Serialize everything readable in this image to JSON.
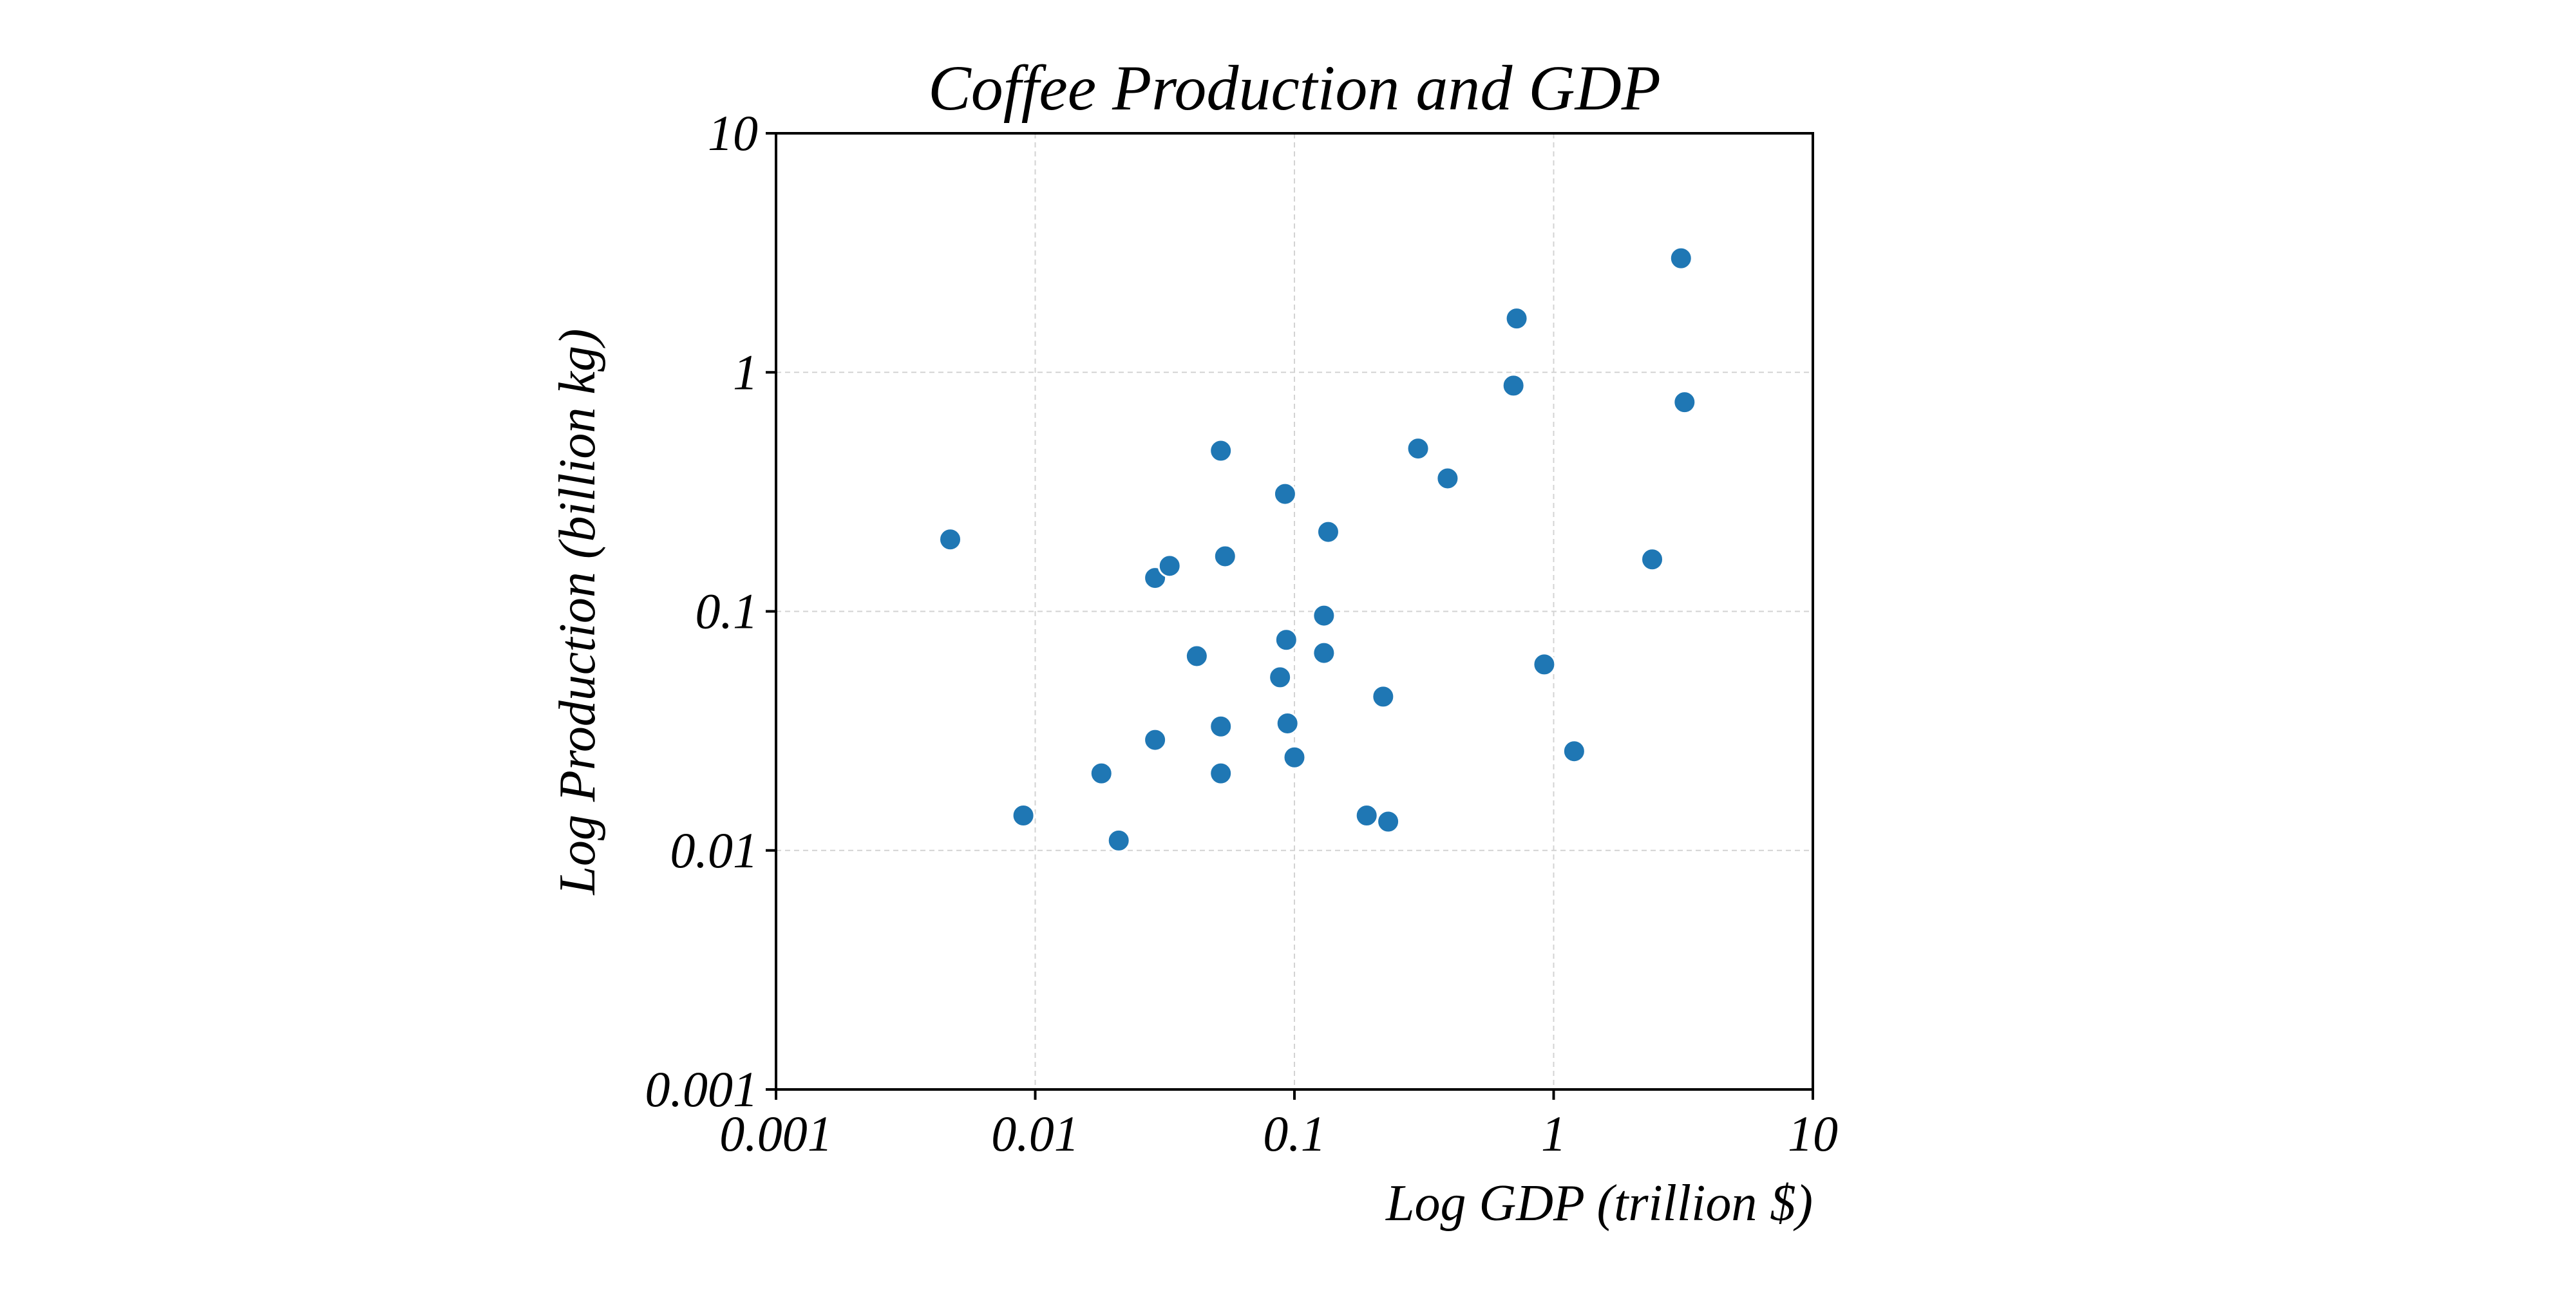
{
  "chart_data": {
    "type": "scatter",
    "title": "Coffee Production and GDP",
    "xlabel": "Log GDP (trillion $)",
    "ylabel": "Log Production (billion kg)",
    "xscale": "log",
    "yscale": "log",
    "xlim": [
      0.001,
      10
    ],
    "ylim": [
      0.001,
      10
    ],
    "xticks": [
      0.001,
      0.01,
      0.1,
      1,
      10
    ],
    "xtick_labels": [
      "0.001",
      "0.01",
      "0.1",
      "1",
      "10"
    ],
    "yticks": [
      0.001,
      0.01,
      0.1,
      1,
      10
    ],
    "ytick_labels": [
      "0.001",
      "0.01",
      "0.1",
      "1",
      "10"
    ],
    "grid": true,
    "legend": "none",
    "series": [
      {
        "name": "countries",
        "color": "#1f77b4",
        "points": [
          {
            "x": 0.0047,
            "y": 0.2
          },
          {
            "x": 0.009,
            "y": 0.014
          },
          {
            "x": 0.018,
            "y": 0.021
          },
          {
            "x": 0.021,
            "y": 0.011
          },
          {
            "x": 0.029,
            "y": 0.138
          },
          {
            "x": 0.029,
            "y": 0.029
          },
          {
            "x": 0.033,
            "y": 0.155
          },
          {
            "x": 0.042,
            "y": 0.065
          },
          {
            "x": 0.052,
            "y": 0.47
          },
          {
            "x": 0.054,
            "y": 0.17
          },
          {
            "x": 0.052,
            "y": 0.033
          },
          {
            "x": 0.052,
            "y": 0.021
          },
          {
            "x": 0.088,
            "y": 0.053
          },
          {
            "x": 0.092,
            "y": 0.31
          },
          {
            "x": 0.093,
            "y": 0.076
          },
          {
            "x": 0.094,
            "y": 0.034
          },
          {
            "x": 0.1,
            "y": 0.0245
          },
          {
            "x": 0.13,
            "y": 0.096
          },
          {
            "x": 0.13,
            "y": 0.067
          },
          {
            "x": 0.135,
            "y": 0.215
          },
          {
            "x": 0.19,
            "y": 0.014
          },
          {
            "x": 0.22,
            "y": 0.044
          },
          {
            "x": 0.23,
            "y": 0.0132
          },
          {
            "x": 0.3,
            "y": 0.48
          },
          {
            "x": 0.39,
            "y": 0.36
          },
          {
            "x": 0.7,
            "y": 0.88
          },
          {
            "x": 0.72,
            "y": 1.68
          },
          {
            "x": 0.92,
            "y": 0.06
          },
          {
            "x": 1.2,
            "y": 0.026
          },
          {
            "x": 2.4,
            "y": 0.165
          },
          {
            "x": 3.1,
            "y": 3.0
          },
          {
            "x": 3.2,
            "y": 0.75
          }
        ]
      }
    ]
  }
}
